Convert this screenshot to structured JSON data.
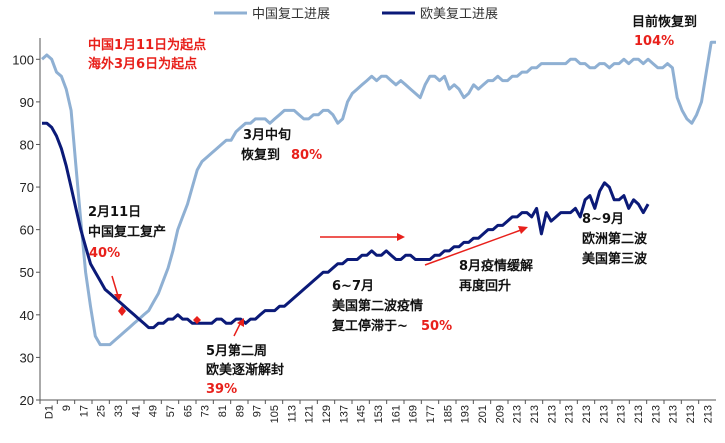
{
  "chart_data": {
    "type": "line",
    "ylim": [
      20,
      105
    ],
    "yticks": [
      20,
      30,
      40,
      50,
      60,
      70,
      80,
      90,
      100
    ],
    "x_tick_labels": [
      "D1",
      "9",
      "17",
      "25",
      "33",
      "41",
      "49",
      "57",
      "65",
      "73",
      "81",
      "89",
      "97",
      "105",
      "113",
      "121",
      "129",
      "137",
      "145",
      "153",
      "161",
      "169",
      "177",
      "185",
      "193",
      "201",
      "209",
      "213",
      "213",
      "213",
      "213",
      "213",
      "213",
      "213",
      "213",
      "213",
      "213",
      "213",
      "213"
    ],
    "legend": {
      "position": "top",
      "entries": [
        "中国复工进展",
        "欧美复工进展"
      ]
    },
    "series": [
      {
        "name": "中国复工进展",
        "color": "#8fb0d3",
        "values": [
          [
            1,
            100
          ],
          [
            2,
            101
          ],
          [
            3,
            100
          ],
          [
            4,
            97
          ],
          [
            5,
            96
          ],
          [
            6,
            93
          ],
          [
            7,
            88
          ],
          [
            8,
            75
          ],
          [
            9,
            62
          ],
          [
            10,
            50
          ],
          [
            11,
            42
          ],
          [
            12,
            35
          ],
          [
            13,
            33
          ],
          [
            14,
            33
          ],
          [
            15,
            33
          ],
          [
            16,
            34
          ],
          [
            17,
            35
          ],
          [
            18,
            36
          ],
          [
            19,
            37
          ],
          [
            20,
            38
          ],
          [
            21,
            39
          ],
          [
            22,
            40
          ],
          [
            23,
            41
          ],
          [
            24,
            43
          ],
          [
            25,
            45
          ],
          [
            26,
            48
          ],
          [
            27,
            51
          ],
          [
            28,
            55
          ],
          [
            29,
            60
          ],
          [
            30,
            63
          ],
          [
            31,
            66
          ],
          [
            32,
            70
          ],
          [
            33,
            74
          ],
          [
            34,
            76
          ],
          [
            35,
            77
          ],
          [
            36,
            78
          ],
          [
            37,
            79
          ],
          [
            38,
            80
          ],
          [
            39,
            81
          ],
          [
            40,
            81
          ],
          [
            41,
            83
          ],
          [
            42,
            84
          ],
          [
            43,
            85
          ],
          [
            44,
            85
          ],
          [
            45,
            86
          ],
          [
            46,
            86
          ],
          [
            47,
            86
          ],
          [
            48,
            85
          ],
          [
            49,
            86
          ],
          [
            50,
            87
          ],
          [
            51,
            88
          ],
          [
            52,
            88
          ],
          [
            53,
            88
          ],
          [
            54,
            87
          ],
          [
            55,
            86
          ],
          [
            56,
            86
          ],
          [
            57,
            87
          ],
          [
            58,
            87
          ],
          [
            59,
            88
          ],
          [
            60,
            88
          ],
          [
            61,
            87
          ],
          [
            62,
            85
          ],
          [
            63,
            86
          ],
          [
            64,
            90
          ],
          [
            65,
            92
          ],
          [
            66,
            93
          ],
          [
            67,
            94
          ],
          [
            68,
            95
          ],
          [
            69,
            96
          ],
          [
            70,
            95
          ],
          [
            71,
            96
          ],
          [
            72,
            96
          ],
          [
            73,
            95
          ],
          [
            74,
            94
          ],
          [
            75,
            95
          ],
          [
            76,
            94
          ],
          [
            77,
            93
          ],
          [
            78,
            92
          ],
          [
            79,
            91
          ],
          [
            80,
            94
          ],
          [
            81,
            96
          ],
          [
            82,
            96
          ],
          [
            83,
            95
          ],
          [
            84,
            96
          ],
          [
            85,
            93
          ],
          [
            86,
            94
          ],
          [
            87,
            93
          ],
          [
            88,
            91
          ],
          [
            89,
            92
          ],
          [
            90,
            94
          ],
          [
            91,
            93
          ],
          [
            92,
            94
          ],
          [
            93,
            95
          ],
          [
            94,
            95
          ],
          [
            95,
            96
          ],
          [
            96,
            95
          ],
          [
            97,
            95
          ],
          [
            98,
            96
          ],
          [
            99,
            96
          ],
          [
            100,
            97
          ],
          [
            101,
            97
          ],
          [
            102,
            98
          ],
          [
            103,
            98
          ],
          [
            104,
            99
          ],
          [
            105,
            99
          ],
          [
            106,
            99
          ],
          [
            107,
            99
          ],
          [
            108,
            99
          ],
          [
            109,
            99
          ],
          [
            110,
            100
          ],
          [
            111,
            100
          ],
          [
            112,
            99
          ],
          [
            113,
            99
          ],
          [
            114,
            98
          ],
          [
            115,
            98
          ],
          [
            116,
            99
          ],
          [
            117,
            99
          ],
          [
            118,
            98
          ],
          [
            119,
            99
          ],
          [
            120,
            99
          ],
          [
            121,
            100
          ],
          [
            122,
            99
          ],
          [
            123,
            100
          ],
          [
            124,
            100
          ],
          [
            125,
            99
          ],
          [
            126,
            100
          ],
          [
            127,
            99
          ],
          [
            128,
            98
          ],
          [
            129,
            98
          ],
          [
            130,
            99
          ],
          [
            131,
            98
          ],
          [
            132,
            91
          ],
          [
            133,
            88
          ],
          [
            134,
            86
          ],
          [
            135,
            85
          ],
          [
            136,
            87
          ],
          [
            137,
            90
          ],
          [
            138,
            97
          ],
          [
            139,
            104
          ],
          [
            140,
            104
          ]
        ]
      },
      {
        "name": "欧美复工进展",
        "color": "#0b1a78",
        "values": [
          [
            1,
            85
          ],
          [
            2,
            85
          ],
          [
            3,
            84
          ],
          [
            4,
            82
          ],
          [
            5,
            79
          ],
          [
            6,
            75
          ],
          [
            7,
            70
          ],
          [
            8,
            65
          ],
          [
            9,
            60
          ],
          [
            10,
            56
          ],
          [
            11,
            52
          ],
          [
            12,
            50
          ],
          [
            13,
            48
          ],
          [
            14,
            46
          ],
          [
            15,
            45
          ],
          [
            16,
            44
          ],
          [
            17,
            43
          ],
          [
            18,
            42
          ],
          [
            19,
            41
          ],
          [
            20,
            40
          ],
          [
            21,
            39
          ],
          [
            22,
            38
          ],
          [
            23,
            37
          ],
          [
            24,
            37
          ],
          [
            25,
            38
          ],
          [
            26,
            38
          ],
          [
            27,
            39
          ],
          [
            28,
            39
          ],
          [
            29,
            40
          ],
          [
            30,
            39
          ],
          [
            31,
            39
          ],
          [
            32,
            38
          ],
          [
            33,
            38
          ],
          [
            34,
            38
          ],
          [
            35,
            38
          ],
          [
            36,
            38
          ],
          [
            37,
            39
          ],
          [
            38,
            39
          ],
          [
            39,
            38
          ],
          [
            40,
            38
          ],
          [
            41,
            39
          ],
          [
            42,
            39
          ],
          [
            43,
            38
          ],
          [
            44,
            39
          ],
          [
            45,
            39
          ],
          [
            46,
            40
          ],
          [
            47,
            41
          ],
          [
            48,
            41
          ],
          [
            49,
            41
          ],
          [
            50,
            42
          ],
          [
            51,
            42
          ],
          [
            52,
            43
          ],
          [
            53,
            44
          ],
          [
            54,
            45
          ],
          [
            55,
            46
          ],
          [
            56,
            47
          ],
          [
            57,
            48
          ],
          [
            58,
            49
          ],
          [
            59,
            50
          ],
          [
            60,
            50
          ],
          [
            61,
            51
          ],
          [
            62,
            52
          ],
          [
            63,
            52
          ],
          [
            64,
            53
          ],
          [
            65,
            53
          ],
          [
            66,
            53
          ],
          [
            67,
            54
          ],
          [
            68,
            54
          ],
          [
            69,
            55
          ],
          [
            70,
            54
          ],
          [
            71,
            54
          ],
          [
            72,
            55
          ],
          [
            73,
            54
          ],
          [
            74,
            53
          ],
          [
            75,
            53
          ],
          [
            76,
            54
          ],
          [
            77,
            54
          ],
          [
            78,
            53
          ],
          [
            79,
            53
          ],
          [
            80,
            53
          ],
          [
            81,
            53
          ],
          [
            82,
            54
          ],
          [
            83,
            54
          ],
          [
            84,
            55
          ],
          [
            85,
            55
          ],
          [
            86,
            56
          ],
          [
            87,
            56
          ],
          [
            88,
            57
          ],
          [
            89,
            57
          ],
          [
            90,
            58
          ],
          [
            91,
            58
          ],
          [
            92,
            59
          ],
          [
            93,
            60
          ],
          [
            94,
            60
          ],
          [
            95,
            61
          ],
          [
            96,
            61
          ],
          [
            97,
            62
          ],
          [
            98,
            63
          ],
          [
            99,
            63
          ],
          [
            100,
            64
          ],
          [
            101,
            64
          ],
          [
            102,
            63
          ],
          [
            103,
            65
          ],
          [
            104,
            59
          ],
          [
            105,
            64
          ],
          [
            106,
            62
          ],
          [
            107,
            63
          ],
          [
            108,
            64
          ],
          [
            109,
            64
          ],
          [
            110,
            64
          ],
          [
            111,
            65
          ],
          [
            112,
            63
          ],
          [
            113,
            67
          ],
          [
            114,
            68
          ],
          [
            115,
            65
          ],
          [
            116,
            69
          ],
          [
            117,
            71
          ],
          [
            118,
            70
          ],
          [
            119,
            67
          ],
          [
            120,
            67
          ],
          [
            121,
            68
          ],
          [
            122,
            65
          ],
          [
            123,
            67
          ],
          [
            124,
            66
          ],
          [
            125,
            64
          ],
          [
            126,
            66
          ]
        ]
      }
    ],
    "annotations": [
      {
        "lines": [
          "中国1月11日为起点",
          "海外3月6日为起点"
        ],
        "color": "red"
      },
      {
        "lines": [
          "目前恢复到"
        ],
        "color": "black",
        "highlight": "104%"
      },
      {
        "lines": [
          "3月中旬",
          "恢复到"
        ],
        "color": "black",
        "highlight": "80%"
      },
      {
        "lines": [
          "2月11日",
          "中国复工复产"
        ],
        "color": "black",
        "highlight": "40%"
      },
      {
        "lines": [
          "5月第二周",
          "欧美逐渐解封"
        ],
        "color": "black",
        "highlight": "39%"
      },
      {
        "lines": [
          "6~7月",
          "美国第二波疫情",
          "复工停滞于~"
        ],
        "color": "black",
        "highlight": "50%"
      },
      {
        "lines": [
          "8月疫情缓解",
          "再度回升"
        ],
        "color": "black"
      },
      {
        "lines": [
          "8~9月",
          "欧洲第二波",
          "美国第三波"
        ],
        "color": "black"
      }
    ]
  },
  "texts": {
    "ann_start_1": "中国1月11日为起点",
    "ann_start_2": "海外3月6日为起点",
    "ann_now": "目前恢复到",
    "ann_now_val": "104%",
    "ann_mar_1": "3月中旬",
    "ann_mar_2": "恢复到",
    "ann_mar_val": "80%",
    "ann_feb_1": "2月11日",
    "ann_feb_2": "中国复工复产",
    "ann_feb_val": "40%",
    "ann_may_1": "5月第二周",
    "ann_may_2": "欧美逐渐解封",
    "ann_may_val": "39%",
    "ann_jun_1": "6~7月",
    "ann_jun_2": "美国第二波疫情",
    "ann_jun_3": "复工停滞于~",
    "ann_jun_val": "50%",
    "ann_aug_1": "8月疫情缓解",
    "ann_aug_2": "再度回升",
    "ann_sep_1": "8~9月",
    "ann_sep_2": "欧洲第二波",
    "ann_sep_3": "美国第三波"
  },
  "colors": {
    "china": "#8fb0d3",
    "west": "#0b1a78",
    "accent": "#e8201b",
    "axis": "#555555"
  }
}
